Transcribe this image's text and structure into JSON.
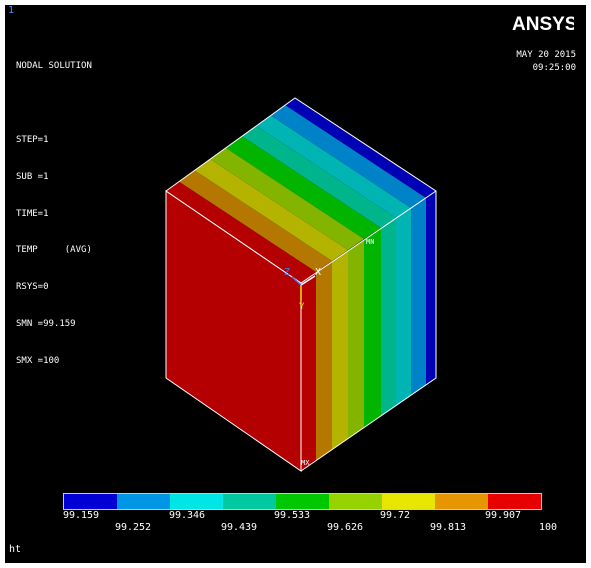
{
  "window_number": "1",
  "logo_text": "ANSYS",
  "info_lines": [
    "NODAL SOLUTION",
    "",
    "STEP=1",
    "SUB =1",
    "TIME=1",
    "TEMP     (AVG)",
    "RSYS=0",
    "SMN =99.159",
    "SMX =100"
  ],
  "date": "MAY 20 2015",
  "time": "09:25:00",
  "markers": {
    "mn": "MN",
    "mx": "MX"
  },
  "axes": {
    "x": "X",
    "y": "Y",
    "z": "Z"
  },
  "legend": {
    "colors": [
      "#0000d4",
      "#0096e6",
      "#00e6e6",
      "#00c8a0",
      "#00c800",
      "#96d200",
      "#e6e600",
      "#e69600",
      "#e60000"
    ],
    "top_labels": [
      "99.159",
      "99.346",
      "99.533",
      "99.72",
      "99.907"
    ],
    "bottom_labels": [
      "99.252",
      "99.439",
      "99.626",
      "99.813",
      "100"
    ]
  },
  "status_text": "ht"
}
